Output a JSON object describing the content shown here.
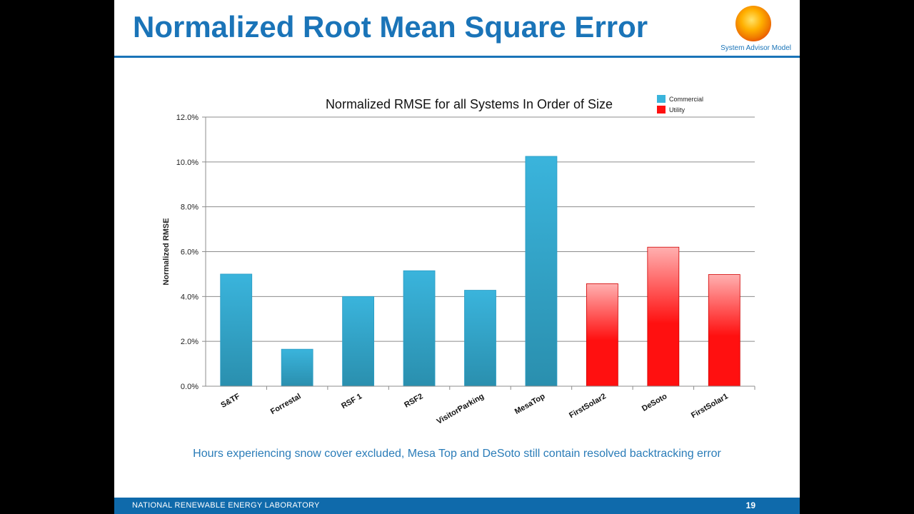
{
  "slide": {
    "title": "Normalized Root Mean Square Error",
    "logo_caption": "System Advisor Model",
    "caption": "Hours experiencing snow cover excluded, Mesa Top and DeSoto still contain resolved backtracking error",
    "footer_org": "NATIONAL RENEWABLE ENERGY LABORATORY",
    "page_number": "19"
  },
  "colors": {
    "brand_blue": "#1a74b8",
    "footer_blue": "#0f6aab",
    "commercial": "#3ab4dc",
    "commercial_dark": "#2a8fae",
    "utility": "#ff1010",
    "utility_light": "#ffb0b0"
  },
  "chart_data": {
    "type": "bar",
    "title": "Normalized RMSE for all Systems In Order of Size",
    "xlabel": "",
    "ylabel": "Normalized RMSE",
    "ylim": [
      0,
      12
    ],
    "y_ticks": [
      0,
      2,
      4,
      6,
      8,
      10,
      12
    ],
    "y_tick_labels": [
      "0.0%",
      "2.0%",
      "4.0%",
      "6.0%",
      "8.0%",
      "10.0%",
      "12.0%"
    ],
    "grid": true,
    "legend_position": "top-right",
    "legend": [
      {
        "name": "Commercial",
        "color": "#3ab4dc"
      },
      {
        "name": "Utility",
        "color": "#ff1010"
      }
    ],
    "categories": [
      "S&TF",
      "Forrestal",
      "RSF 1",
      "RSF2",
      "VisitorParking",
      "MesaTop",
      "FirstSolar2",
      "DeSoto",
      "FirstSolar1"
    ],
    "values": [
      5.0,
      1.65,
      4.0,
      5.15,
      4.28,
      10.25,
      4.57,
      6.2,
      4.98
    ],
    "groups": [
      "Commercial",
      "Commercial",
      "Commercial",
      "Commercial",
      "Commercial",
      "Commercial",
      "Utility",
      "Utility",
      "Utility"
    ]
  }
}
